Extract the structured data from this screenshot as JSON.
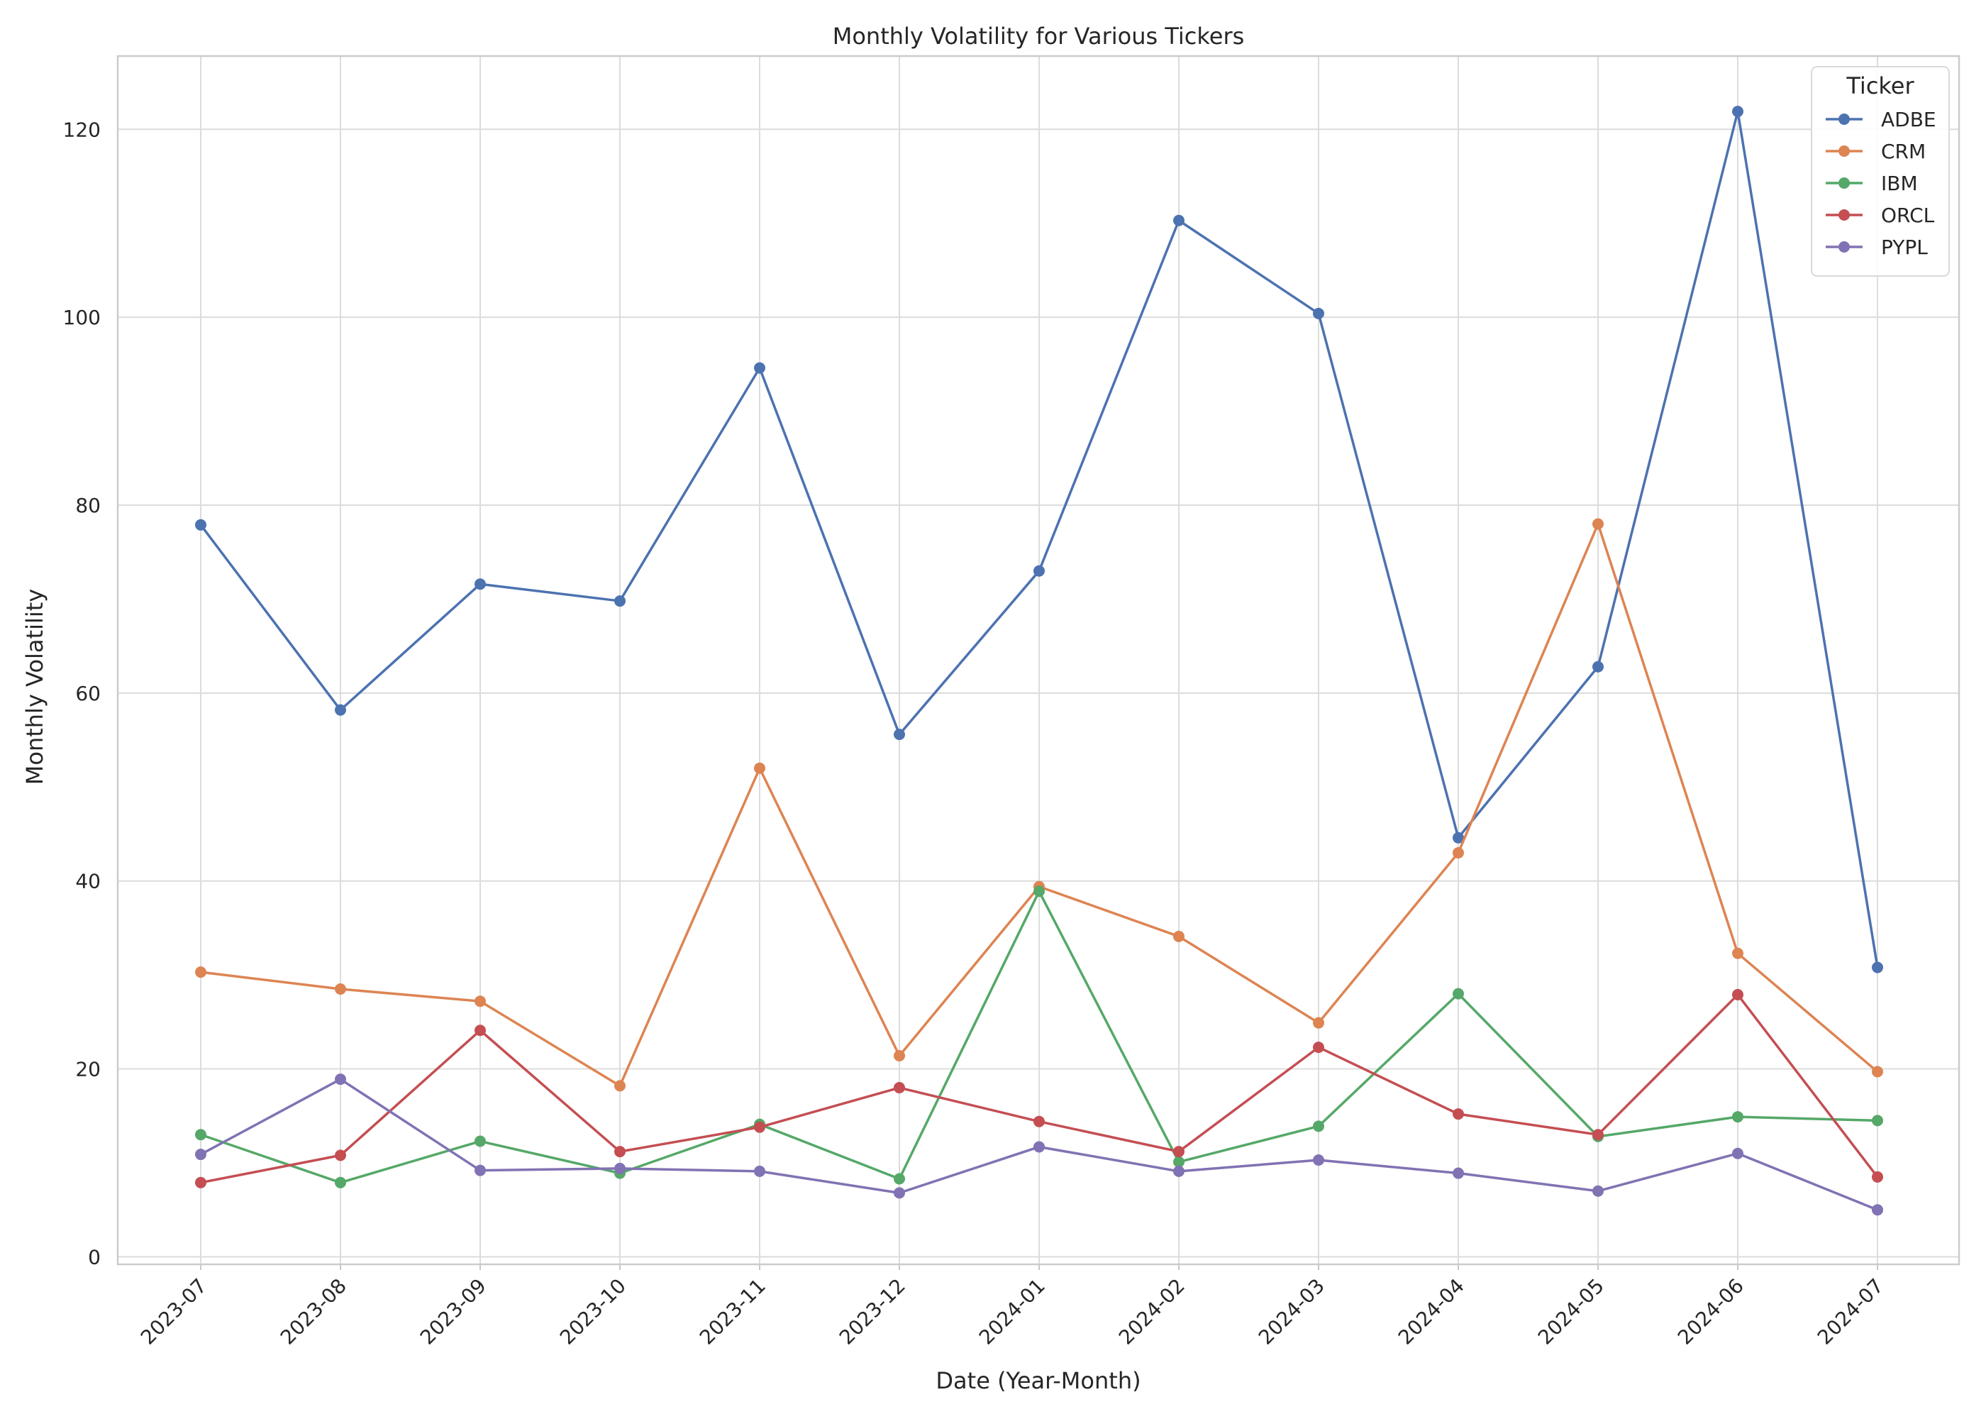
{
  "chart_data": {
    "type": "line",
    "title": "Monthly Volatility for Various Tickers",
    "xlabel": "Date (Year-Month)",
    "ylabel": "Monthly Volatility",
    "categories": [
      "2023-07",
      "2023-08",
      "2023-09",
      "2023-10",
      "2023-11",
      "2023-12",
      "2024-01",
      "2024-02",
      "2024-03",
      "2024-04",
      "2024-05",
      "2024-06",
      "2024-07"
    ],
    "ylim": [
      -0.8,
      127.8
    ],
    "yticks": [
      0,
      20,
      40,
      60,
      80,
      100,
      120
    ],
    "grid": true,
    "legend": {
      "title": "Ticker",
      "placement": "top-right"
    },
    "series": [
      {
        "name": "ADBE",
        "color": "#4c72b0",
        "values": [
          77.9,
          58.2,
          71.6,
          69.8,
          94.6,
          55.6,
          73.0,
          110.3,
          100.4,
          44.6,
          62.8,
          121.9,
          30.8
        ]
      },
      {
        "name": "CRM",
        "color": "#dd8452",
        "values": [
          30.3,
          28.5,
          27.2,
          18.2,
          52.0,
          21.4,
          39.4,
          34.1,
          24.9,
          43.0,
          78.0,
          32.3,
          19.7
        ]
      },
      {
        "name": "IBM",
        "color": "#55a868",
        "values": [
          13.0,
          7.9,
          12.3,
          8.9,
          14.1,
          8.3,
          38.9,
          10.1,
          13.9,
          28.0,
          12.8,
          14.9,
          14.5
        ]
      },
      {
        "name": "ORCL",
        "color": "#c44e52",
        "values": [
          7.9,
          10.8,
          24.1,
          11.2,
          13.8,
          18.0,
          14.4,
          11.2,
          22.3,
          15.2,
          13.0,
          27.9,
          8.5
        ]
      },
      {
        "name": "PYPL",
        "color": "#8172b3",
        "values": [
          10.9,
          18.9,
          9.2,
          9.4,
          9.1,
          6.8,
          11.7,
          9.1,
          10.3,
          8.9,
          7.0,
          11.0,
          5.0
        ]
      }
    ]
  }
}
